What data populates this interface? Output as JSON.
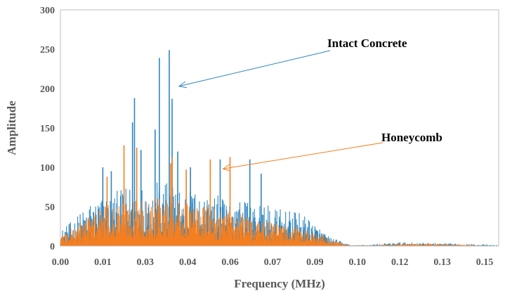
{
  "chart_data": {
    "type": "bar",
    "title": "",
    "xlabel": "Frequency (MHz)",
    "ylabel": "Amplitude",
    "xlim": [
      0,
      0.155
    ],
    "ylim": [
      0,
      300
    ],
    "x_ticks": [
      "0.00",
      "0.01",
      "0.03",
      "0.04",
      "0.06",
      "0.07",
      "0.09",
      "0.10",
      "0.12",
      "0.13",
      "0.15"
    ],
    "y_ticks": [
      "0",
      "50",
      "100",
      "150",
      "200",
      "250",
      "300"
    ],
    "grid": false,
    "legend": "none",
    "series": [
      {
        "name": "Intact Concrete",
        "color": "#2E86C1",
        "peaks": [
          {
            "x": 0.0255,
            "y": 157
          },
          {
            "x": 0.0262,
            "y": 188
          },
          {
            "x": 0.0285,
            "y": 122
          },
          {
            "x": 0.0335,
            "y": 148
          },
          {
            "x": 0.035,
            "y": 239
          },
          {
            "x": 0.0385,
            "y": 249
          },
          {
            "x": 0.0395,
            "y": 187
          },
          {
            "x": 0.0415,
            "y": 120
          },
          {
            "x": 0.0565,
            "y": 110
          },
          {
            "x": 0.067,
            "y": 110
          },
          {
            "x": 0.071,
            "y": 92
          },
          {
            "x": 0.015,
            "y": 100
          },
          {
            "x": 0.018,
            "y": 95
          },
          {
            "x": 0.046,
            "y": 100
          }
        ],
        "envelope": [
          [
            0.0,
            20
          ],
          [
            0.005,
            35
          ],
          [
            0.01,
            55
          ],
          [
            0.015,
            65
          ],
          [
            0.02,
            70
          ],
          [
            0.025,
            78
          ],
          [
            0.03,
            80
          ],
          [
            0.035,
            82
          ],
          [
            0.04,
            80
          ],
          [
            0.045,
            75
          ],
          [
            0.05,
            70
          ],
          [
            0.055,
            65
          ],
          [
            0.06,
            62
          ],
          [
            0.065,
            58
          ],
          [
            0.07,
            55
          ],
          [
            0.075,
            50
          ],
          [
            0.08,
            45
          ],
          [
            0.085,
            42
          ],
          [
            0.09,
            30
          ],
          [
            0.095,
            12
          ],
          [
            0.1,
            5
          ],
          [
            0.103,
            1
          ],
          [
            0.11,
            2
          ],
          [
            0.12,
            5
          ],
          [
            0.13,
            4
          ],
          [
            0.14,
            3
          ],
          [
            0.15,
            2
          ],
          [
            0.155,
            1
          ]
        ]
      },
      {
        "name": "Honeycomb",
        "color": "#F57F20",
        "peaks": [
          {
            "x": 0.0225,
            "y": 128
          },
          {
            "x": 0.027,
            "y": 125
          },
          {
            "x": 0.0395,
            "y": 113
          },
          {
            "x": 0.0445,
            "y": 97
          },
          {
            "x": 0.053,
            "y": 110
          },
          {
            "x": 0.06,
            "y": 113
          },
          {
            "x": 0.039,
            "y": 105
          },
          {
            "x": 0.0165,
            "y": 88
          }
        ],
        "envelope": [
          [
            0.0,
            15
          ],
          [
            0.005,
            25
          ],
          [
            0.01,
            40
          ],
          [
            0.015,
            50
          ],
          [
            0.02,
            56
          ],
          [
            0.025,
            60
          ],
          [
            0.03,
            62
          ],
          [
            0.035,
            62
          ],
          [
            0.04,
            60
          ],
          [
            0.045,
            56
          ],
          [
            0.05,
            52
          ],
          [
            0.055,
            48
          ],
          [
            0.06,
            45
          ],
          [
            0.065,
            40
          ],
          [
            0.07,
            35
          ],
          [
            0.075,
            30
          ],
          [
            0.08,
            27
          ],
          [
            0.085,
            24
          ],
          [
            0.09,
            18
          ],
          [
            0.095,
            10
          ],
          [
            0.1,
            3
          ],
          [
            0.102,
            1
          ],
          [
            0.11,
            1
          ],
          [
            0.12,
            3
          ],
          [
            0.13,
            3
          ],
          [
            0.14,
            2
          ],
          [
            0.15,
            1
          ],
          [
            0.155,
            0
          ]
        ]
      }
    ],
    "annotations": [
      {
        "text": "Intact Concrete",
        "series": 0,
        "arrow_target": {
          "x": 0.042,
          "y": 203
        }
      },
      {
        "text": "Honeycomb",
        "series": 1,
        "arrow_target": {
          "x": 0.0575,
          "y": 98
        }
      }
    ]
  }
}
